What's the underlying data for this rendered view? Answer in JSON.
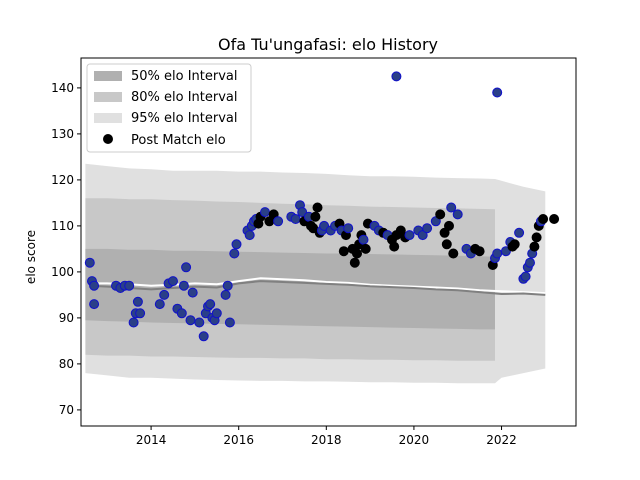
{
  "chart_data": {
    "type": "scatter",
    "title": "Ofa Tu'ungafasi: elo History",
    "xlabel": "",
    "ylabel": "elo score",
    "xlim": [
      2012.4,
      2023.7
    ],
    "ylim": [
      66.5,
      146.5
    ],
    "xticks": [
      2014,
      2016,
      2018,
      2020,
      2022
    ],
    "yticks": [
      70,
      80,
      90,
      100,
      110,
      120,
      130,
      140
    ],
    "grid": false,
    "legend_position": "upper-left",
    "legend": [
      {
        "label": "50% elo Interval",
        "kind": "band",
        "color": "#b0b0b0"
      },
      {
        "label": "80% elo Interval",
        "kind": "band",
        "color": "#c8c8c8"
      },
      {
        "label": "95% elo Interval",
        "kind": "band",
        "color": "#e0e0e0"
      },
      {
        "label": "Post Match elo",
        "kind": "marker",
        "color": "#000000"
      }
    ],
    "bands": {
      "x": [
        2012.5,
        2013.0,
        2013.5,
        2014.0,
        2014.5,
        2015.0,
        2015.5,
        2016.0,
        2016.5,
        2017.0,
        2017.5,
        2018.0,
        2018.5,
        2019.0,
        2019.5,
        2020.0,
        2020.5,
        2021.0,
        2021.5,
        2021.85,
        2022.0,
        2022.5,
        2023.0
      ],
      "interval_95": {
        "upper": [
          123.5,
          123.0,
          122.5,
          122.3,
          122.0,
          122.0,
          122.0,
          121.8,
          121.8,
          121.6,
          121.5,
          121.3,
          121.0,
          120.8,
          120.8,
          120.7,
          120.5,
          120.4,
          120.3,
          120.2,
          119.8,
          118.5,
          117.5
        ],
        "lower": [
          78.0,
          77.5,
          77.0,
          77.0,
          76.8,
          76.6,
          76.5,
          76.4,
          76.3,
          76.3,
          76.2,
          76.2,
          76.1,
          76.0,
          76.0,
          75.9,
          75.9,
          75.8,
          75.8,
          75.8,
          77.0,
          78.0,
          79.0
        ],
        "end_x": [
          2012.5,
          2023.0
        ]
      },
      "interval_80": {
        "upper": [
          116.0,
          116.0,
          115.8,
          115.8,
          115.6,
          115.5,
          115.3,
          115.2,
          115.0,
          114.8,
          114.7,
          114.5,
          114.4,
          114.2,
          114.1,
          114.0,
          113.9,
          113.8,
          113.7,
          113.6
        ],
        "lower": [
          82.0,
          81.8,
          81.8,
          81.6,
          81.6,
          81.5,
          81.4,
          81.3,
          81.3,
          81.2,
          81.2,
          81.0,
          81.0,
          80.9,
          80.9,
          80.8,
          80.8,
          80.7,
          80.7,
          80.7
        ],
        "end_x": [
          2012.5,
          2021.85
        ]
      },
      "interval_50": {
        "upper": [
          105.0,
          105.0,
          104.8,
          104.8,
          104.6,
          104.6,
          104.5,
          104.4,
          104.3,
          104.2,
          104.1,
          104.0,
          104.0,
          103.9,
          103.8,
          103.7,
          103.6,
          103.5,
          103.4,
          103.3
        ],
        "lower": [
          89.5,
          89.3,
          89.2,
          89.0,
          88.9,
          88.8,
          88.7,
          88.6,
          88.5,
          88.4,
          88.3,
          88.2,
          88.1,
          88.0,
          87.9,
          87.8,
          87.7,
          87.6,
          87.5,
          87.5
        ],
        "end_x": [
          2012.5,
          2021.85
        ]
      }
    },
    "series": [
      {
        "kind": "line",
        "color": "#ffffff",
        "x": [
          2012.6,
          2013.0,
          2013.5,
          2014.0,
          2014.5,
          2015.0,
          2015.5,
          2016.0,
          2016.5,
          2017.0,
          2017.5,
          2018.0,
          2018.5,
          2019.0,
          2019.5,
          2020.0,
          2020.5,
          2021.0,
          2021.5,
          2022.0,
          2022.5,
          2023.0
        ],
        "y": [
          97.5,
          97.5,
          97.3,
          97.0,
          97.2,
          97.5,
          97.3,
          98.0,
          98.6,
          98.4,
          98.2,
          97.8,
          97.6,
          97.2,
          97.0,
          96.8,
          96.6,
          96.4,
          96.0,
          95.8,
          95.6,
          95.4
        ]
      },
      {
        "kind": "line",
        "color": "#808080",
        "x": [
          2012.6,
          2013.0,
          2013.5,
          2014.0,
          2014.5,
          2015.0,
          2015.5,
          2016.0,
          2016.5,
          2017.0,
          2017.5,
          2018.0,
          2018.5,
          2019.0,
          2019.5,
          2020.0,
          2020.5,
          2021.0,
          2021.5,
          2022.0,
          2022.5,
          2023.0
        ],
        "y": [
          97.0,
          96.8,
          96.5,
          96.2,
          96.5,
          96.8,
          96.6,
          97.5,
          98.0,
          97.8,
          97.6,
          97.4,
          97.2,
          96.9,
          96.7,
          96.5,
          96.2,
          96.0,
          95.6,
          95.2,
          95.3,
          95.0
        ]
      },
      {
        "name": "Post Match elo",
        "kind": "scatter",
        "x": [
          2012.6,
          2012.65,
          2012.7,
          2012.7,
          2013.2,
          2013.3,
          2013.4,
          2013.5,
          2013.6,
          2013.65,
          2013.7,
          2013.75,
          2014.2,
          2014.3,
          2014.4,
          2014.5,
          2014.6,
          2014.7,
          2014.75,
          2014.8,
          2014.9,
          2014.95,
          2015.1,
          2015.2,
          2015.25,
          2015.3,
          2015.35,
          2015.4,
          2015.45,
          2015.5,
          2015.7,
          2015.75,
          2015.8,
          2015.9,
          2015.95,
          2016.2,
          2016.25,
          2016.3,
          2016.35,
          2016.4,
          2016.45,
          2016.5,
          2016.6,
          2016.7,
          2016.8,
          2016.9,
          2017.2,
          2017.3,
          2017.4,
          2017.45,
          2017.5,
          2017.6,
          2017.65,
          2017.7,
          2017.75,
          2017.8,
          2017.85,
          2017.9,
          2017.95,
          2018.1,
          2018.2,
          2018.3,
          2018.35,
          2018.4,
          2018.45,
          2018.5,
          2018.6,
          2018.65,
          2018.7,
          2018.75,
          2018.8,
          2018.85,
          2018.9,
          2018.95,
          2019.1,
          2019.2,
          2019.3,
          2019.4,
          2019.5,
          2019.55,
          2019.6,
          2019.7,
          2019.8,
          2019.9,
          2020.1,
          2020.2,
          2020.3,
          2020.5,
          2020.6,
          2020.7,
          2020.75,
          2020.8,
          2020.85,
          2020.9,
          2021.0,
          2021.2,
          2021.3,
          2021.4,
          2021.5,
          2021.8,
          2021.85,
          2021.9,
          2022.1,
          2022.2,
          2022.25,
          2022.3,
          2022.4,
          2022.5,
          2022.55,
          2022.6,
          2022.65,
          2022.7,
          2022.75,
          2022.8,
          2022.85,
          2022.9,
          2022.95,
          2023.2,
          2019.6,
          2021.9
        ],
        "y": [
          102.0,
          98.0,
          97.0,
          93.0,
          97.0,
          96.5,
          97.0,
          97.0,
          89.0,
          91.0,
          93.5,
          91.0,
          93.0,
          95.0,
          97.5,
          98.0,
          92.0,
          91.0,
          97.0,
          101.0,
          89.5,
          95.5,
          89.0,
          86.0,
          91.0,
          92.5,
          93.0,
          90.0,
          89.5,
          91.0,
          95.0,
          97.0,
          89.0,
          104.0,
          106.0,
          109.0,
          108.0,
          110.0,
          111.0,
          111.5,
          110.5,
          112.0,
          113.0,
          111.0,
          112.5,
          111.0,
          112.0,
          111.5,
          114.5,
          113.0,
          111.0,
          112.0,
          110.0,
          109.5,
          112.0,
          114.0,
          108.5,
          109.0,
          110.0,
          109.0,
          110.0,
          110.5,
          109.0,
          104.5,
          108.0,
          109.5,
          105.0,
          102.0,
          104.0,
          106.0,
          108.0,
          107.0,
          105.0,
          110.5,
          110.0,
          109.0,
          108.5,
          108.0,
          107.0,
          105.5,
          108.0,
          109.0,
          107.5,
          108.0,
          109.0,
          108.0,
          109.5,
          111.0,
          112.5,
          108.5,
          106.0,
          110.0,
          114.0,
          104.0,
          112.5,
          105.0,
          104.0,
          105.0,
          104.5,
          101.5,
          103.0,
          104.0,
          104.5,
          106.5,
          105.5,
          106.0,
          108.5,
          98.5,
          99.0,
          101.0,
          102.0,
          104.0,
          105.5,
          107.5,
          110.0,
          111.0,
          111.5,
          111.5,
          142.5,
          139.0
        ],
        "color": [
          "#2a3f88",
          "#2a3f88",
          "#2a3f88",
          "#2a3f88",
          "#2a3f88",
          "#2a3f88",
          "#2a3f88",
          "#2a3f88",
          "#2a3f88",
          "#2a3f88",
          "#2a3f88",
          "#2a3f88",
          "#2a3f88",
          "#2a3f88",
          "#2a3f88",
          "#2a3f88",
          "#2a3f88",
          "#2a3f88",
          "#2a3f88",
          "#2a3f88",
          "#2a3f88",
          "#2a3f88",
          "#2a3f88",
          "#2a3f88",
          "#2a3f88",
          "#2a3f88",
          "#2a3f88",
          "#2a3f88",
          "#2a3f88",
          "#2a3f88",
          "#2a3f88",
          "#2a3f88",
          "#2a3f88",
          "#2a3f88",
          "#2a3f88",
          "#2a3f88",
          "#2a3f88",
          "#2a3f88",
          "#2a3f88",
          "#2a3f88",
          "#000000",
          "#000000",
          "#2a3f88",
          "#000000",
          "#000000",
          "#2a3f88",
          "#2a3f88",
          "#2a3f88",
          "#2a3f88",
          "#2a3f88",
          "#000000",
          "#2a3f88",
          "#000000",
          "#000000",
          "#000000",
          "#000000",
          "#000000",
          "#2a3f88",
          "#2a3f88",
          "#2a3f88",
          "#2a3f88",
          "#000000",
          "#2a3f88",
          "#000000",
          "#000000",
          "#2a3f88",
          "#000000",
          "#000000",
          "#000000",
          "#000000",
          "#000000",
          "#2a3f88",
          "#000000",
          "#000000",
          "#2a3f88",
          "#2a3f88",
          "#000000",
          "#2a3f88",
          "#000000",
          "#000000",
          "#000000",
          "#000000",
          "#000000",
          "#2a3f88",
          "#2a3f88",
          "#2a3f88",
          "#2a3f88",
          "#2a3f88",
          "#000000",
          "#000000",
          "#000000",
          "#000000",
          "#2a3f88",
          "#000000",
          "#2a3f88",
          "#2a3f88",
          "#2a3f88",
          "#000000",
          "#000000",
          "#000000",
          "#2a3f88",
          "#2a3f88",
          "#2a3f88",
          "#2a3f88",
          "#000000",
          "#000000",
          "#2a3f88",
          "#2a3f88",
          "#2a3f88",
          "#2a3f88",
          "#2a3f88",
          "#2a3f88",
          "#000000",
          "#000000",
          "#000000",
          "#2a3f88",
          "#000000",
          "#000000"
        ]
      }
    ]
  }
}
